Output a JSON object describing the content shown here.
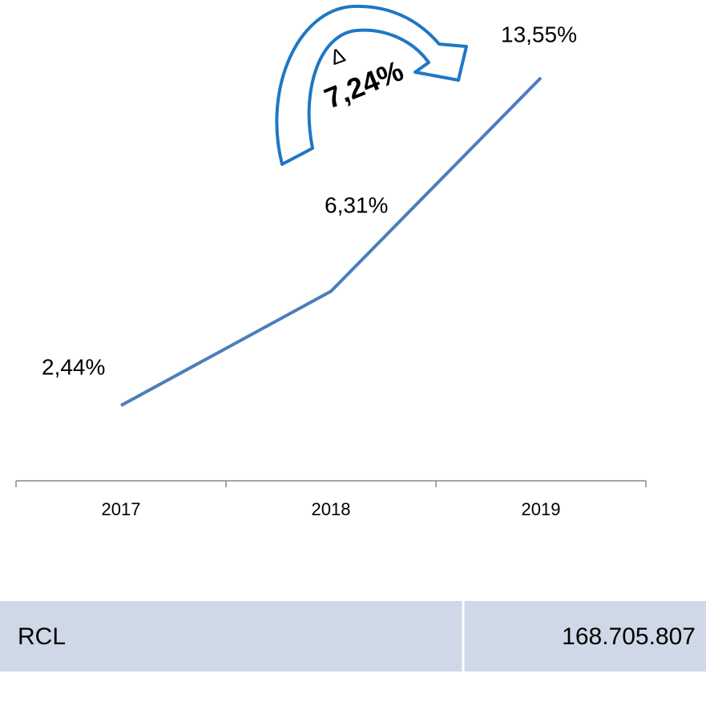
{
  "chart_data": {
    "type": "line",
    "categories": [
      "2017",
      "2018",
      "2019"
    ],
    "series": [
      {
        "color": "#4a7ebb",
        "values": [
          2.44,
          6.31,
          13.55
        ],
        "value_labels": [
          "2,44%",
          "6,31%",
          "13,55%"
        ]
      }
    ],
    "annotations": [
      "∆",
      "7,24%"
    ]
  },
  "table": {
    "rows": [
      [
        "RCL",
        "168.705.807"
      ]
    ]
  }
}
